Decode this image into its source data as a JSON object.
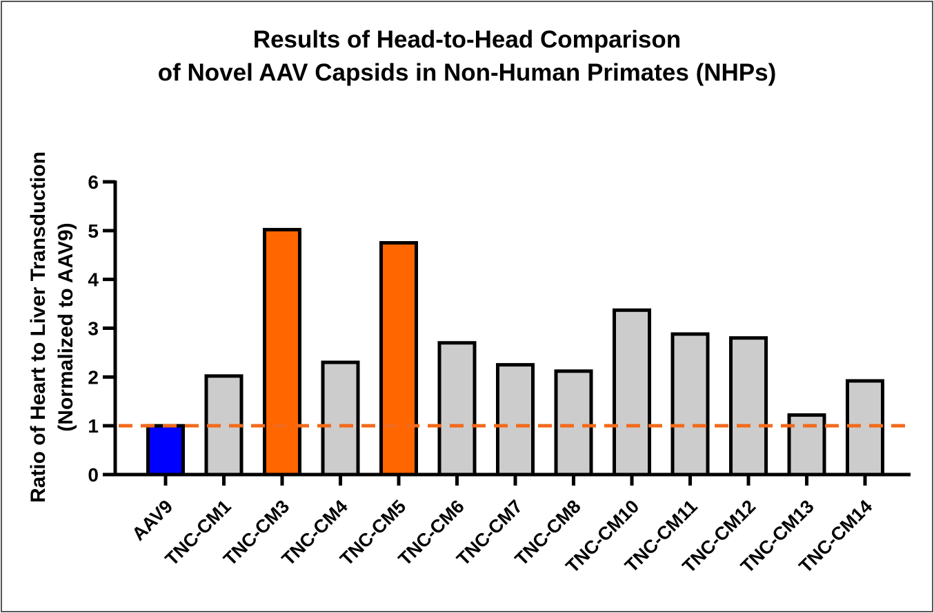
{
  "chart_data": {
    "type": "bar",
    "title_line1": "Results of Head-to-Head Comparison",
    "title_line2": "of Novel AAV Capsids in Non-Human Primates (NHPs)",
    "ylabel_line1": "Ratio of Heart to Liver Transduction",
    "ylabel_line2": "(Normalized to AAV9)",
    "xlabel": "",
    "ylim": [
      0,
      6
    ],
    "yticks": [
      "0",
      "1",
      "2",
      "3",
      "4",
      "5",
      "6"
    ],
    "categories": [
      "AAV9",
      "TNC-CM1",
      "TNC-CM3",
      "TNC-CM4",
      "TNC-CM5",
      "TNC-CM6",
      "TNC-CM7",
      "TNC-CM8",
      "TNC-CM10",
      "TNC-CM11",
      "TNC-CM12",
      "TNC-CM13",
      "TNC-CM14"
    ],
    "values": [
      1.0,
      2.02,
      5.02,
      2.3,
      4.75,
      2.7,
      2.25,
      2.12,
      3.37,
      2.88,
      2.8,
      1.22,
      1.92
    ],
    "bar_colors": [
      "#0000ff",
      "#cccccc",
      "#ff6600",
      "#cccccc",
      "#ff6600",
      "#cccccc",
      "#cccccc",
      "#cccccc",
      "#cccccc",
      "#cccccc",
      "#cccccc",
      "#cccccc",
      "#cccccc"
    ],
    "reference_line": {
      "value": 1,
      "color": "#f26a1b",
      "style": "dashed"
    },
    "grid": false,
    "legend": "none"
  }
}
